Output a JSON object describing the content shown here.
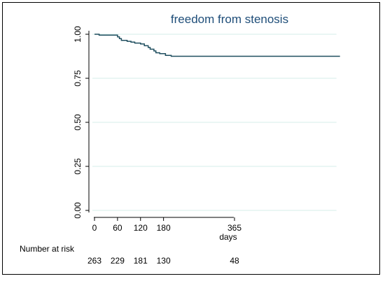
{
  "chart_data": {
    "type": "line",
    "title": "freedom from stenosis",
    "xlabel": "days",
    "ylabel": "",
    "xlim": [
      0,
      640
    ],
    "ylim": [
      0,
      1
    ],
    "x_ticks": [
      0,
      60,
      120,
      180,
      365
    ],
    "x_tick_labels": [
      "0",
      "60",
      "120",
      "180",
      "365"
    ],
    "y_ticks": [
      0,
      0.25,
      0.5,
      0.75,
      1.0
    ],
    "y_tick_labels": [
      "0.00",
      "0.25",
      "0.50",
      "0.75",
      "1.00"
    ],
    "grid": true,
    "line_color": "#1f4e5f",
    "series": [
      {
        "step": true,
        "x": [
          0,
          12,
          55,
          60,
          65,
          70,
          85,
          95,
          105,
          120,
          130,
          140,
          145,
          155,
          160,
          170,
          185,
          200,
          640
        ],
        "y": [
          1.0,
          0.995,
          0.995,
          0.985,
          0.975,
          0.965,
          0.96,
          0.955,
          0.95,
          0.945,
          0.935,
          0.925,
          0.915,
          0.905,
          0.895,
          0.89,
          0.88,
          0.875,
          0.875
        ]
      }
    ]
  },
  "risk_table": {
    "label": "Number at risk",
    "x": [
      0,
      60,
      120,
      180,
      365
    ],
    "values": [
      "263",
      "229",
      "181",
      "130",
      "48"
    ]
  }
}
